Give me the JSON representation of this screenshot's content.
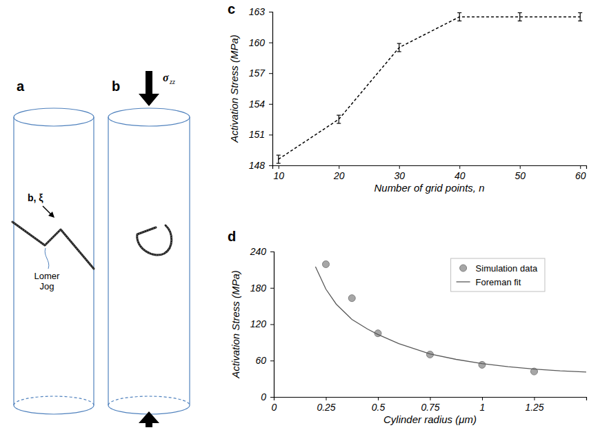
{
  "chart_data": [
    {
      "panel": "c",
      "type": "line",
      "x_label": "Number of grid points, n",
      "y_label": "Activation Stress (MPa)",
      "x": [
        10,
        20,
        30,
        40,
        50,
        60
      ],
      "series": [
        {
          "values": [
            148.6,
            152.5,
            159.5,
            162.5,
            162.5,
            162.5
          ],
          "errors": [
            0.4,
            0.4,
            0.4,
            0.4,
            0.4,
            0.4
          ],
          "color": "#000000",
          "line_style": "dashed",
          "marker": "none"
        }
      ],
      "xlim": [
        9,
        61
      ],
      "xticks": [
        10,
        20,
        30,
        40,
        50,
        60
      ],
      "ylim": [
        148,
        163
      ],
      "yticks": [
        148,
        151,
        154,
        157,
        160,
        163
      ],
      "grid": false
    },
    {
      "panel": "d",
      "type": "scatter",
      "x_label": "Cylinder radius (μm)",
      "y_label": "Activation Stress (MPa)",
      "series": [
        {
          "name": "Simulation data",
          "type": "scatter",
          "marker": "circle",
          "color": "#a6a6a6",
          "x": [
            0.25,
            0.375,
            0.5,
            0.75,
            1,
            1.25
          ],
          "values": [
            219,
            163,
            105,
            70,
            53,
            42
          ]
        },
        {
          "name": "Foreman fit",
          "type": "line",
          "line_style": "solid",
          "marker": "none",
          "color": "#595959",
          "x": [
            0.2,
            0.25,
            0.3,
            0.375,
            0.45,
            0.5,
            0.6,
            0.75,
            0.875,
            1,
            1.125,
            1.25,
            1.375,
            1.5
          ],
          "values": [
            215,
            178,
            153,
            128,
            112,
            103,
            88,
            71,
            62,
            55,
            50,
            46,
            43,
            41
          ]
        }
      ],
      "xlim": [
        0,
        1.5
      ],
      "xticks": [
        0,
        0.25,
        0.5,
        0.75,
        1,
        1.25
      ],
      "ylim": [
        0,
        240
      ],
      "yticks": [
        0,
        60,
        120,
        180,
        240
      ],
      "grid": false,
      "legend": "top-right"
    }
  ],
  "diagrams": [
    {
      "panel": "a",
      "burgers_label": "b, ξ",
      "jog_label": "Lomer Jog"
    },
    {
      "panel": "b",
      "stress_label": "σ",
      "stress_subscript": "zz"
    }
  ]
}
